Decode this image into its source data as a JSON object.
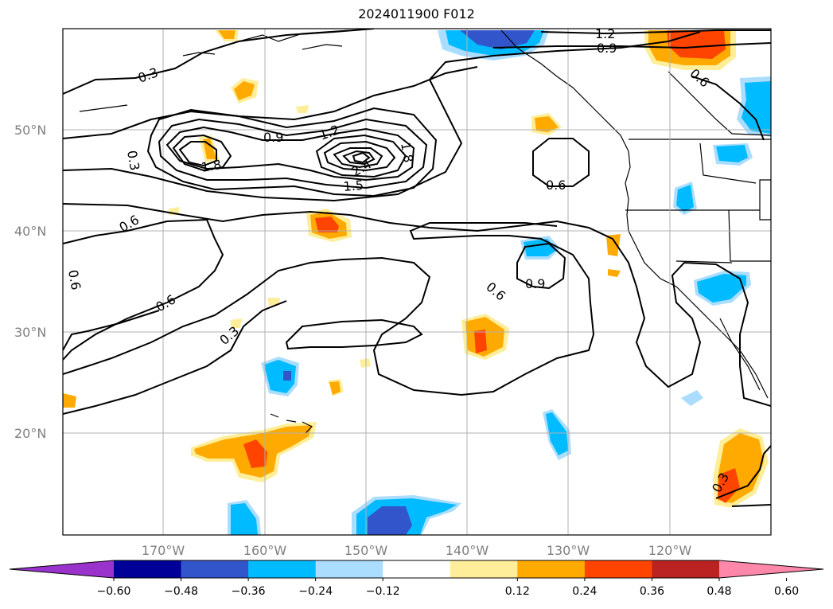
{
  "title": "2024011900 F012",
  "lat_labels": [
    "50°N",
    "40°N",
    "30°N",
    "20°N"
  ],
  "lon_labels": [
    "170°W",
    "160°W",
    "150°W",
    "140°W",
    "130°W",
    "120°W"
  ],
  "colorbar": {
    "ticks": [
      "−0.60",
      "−0.48",
      "−0.36",
      "−0.24",
      "−0.12",
      "0.12",
      "0.24",
      "0.36",
      "0.48",
      "0.60"
    ],
    "colors": [
      "#9933cc",
      "#000099",
      "#3355cc",
      "#00bbff",
      "#aaddff",
      "#ffffff",
      "#ffee99",
      "#ffaa00",
      "#ff4400",
      "#bb2222",
      "#ff88aa"
    ]
  },
  "contour_labels": [
    "0.3",
    "0.3",
    "0.9",
    "1.2",
    "1.8",
    "1.8",
    "1.5",
    "2.4",
    "1.2",
    "0.9",
    "0.6",
    "0.6",
    "0.6",
    "0.6",
    "0.6",
    "0.3",
    "0.6",
    "0.9",
    "0.3"
  ],
  "colors": {
    "grid": "#b0b0b0",
    "contour": "#000000",
    "tick_label": "#808080"
  }
}
